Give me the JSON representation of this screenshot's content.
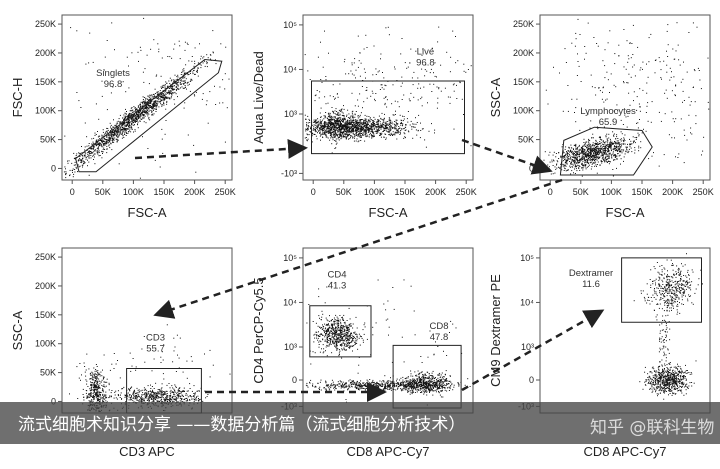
{
  "panels": [
    {
      "x_label": "FSC-A",
      "y_label": "FSC-H",
      "yticks": [
        "0",
        "50K",
        "100K",
        "150K",
        "200K",
        "250K"
      ],
      "xticks": [
        "0",
        "50K",
        "100K",
        "150K",
        "200K",
        "250K"
      ],
      "gates": [
        {
          "name": "Singlets",
          "percent": "96.8"
        }
      ]
    },
    {
      "x_label": "FSC-A",
      "y_label": "Aqua Live/Dead",
      "yticks": [
        "-10³",
        "0",
        "10³",
        "10⁴",
        "10⁵"
      ],
      "xticks": [
        "0",
        "50K",
        "100K",
        "150K",
        "200K",
        "250K"
      ],
      "gates": [
        {
          "name": "Live",
          "percent": "96.8"
        }
      ]
    },
    {
      "x_label": "FSC-A",
      "y_label": "SSC-A",
      "yticks": [
        "0",
        "50K",
        "100K",
        "150K",
        "200K",
        "250K"
      ],
      "xticks": [
        "0",
        "50K",
        "100K",
        "150K",
        "200K",
        "250K"
      ],
      "gates": [
        {
          "name": "Lymphocytes",
          "percent": "65.9"
        }
      ]
    },
    {
      "x_label": "CD3 APC",
      "y_label": "SSC-A",
      "yticks": [
        "0",
        "50K",
        "100K",
        "150K",
        "200K",
        "250K"
      ],
      "gates": [
        {
          "name": "CD3",
          "percent": "55.7"
        }
      ]
    },
    {
      "x_label": "CD8 APC-Cy7",
      "y_label": "CD4 PerCP-Cy5.5",
      "yticks": [
        "-10³",
        "0",
        "10³",
        "10⁴",
        "10⁵"
      ],
      "gates": [
        {
          "name": "CD4",
          "percent": "41.3"
        },
        {
          "name": "CD8",
          "percent": "47.8"
        }
      ]
    },
    {
      "x_label": "CD8 APC-Cy7",
      "y_label": "CM9 Dextramer PE",
      "yticks": [
        "-10³",
        "0",
        "10³",
        "10⁴",
        "10⁵"
      ],
      "gates": [
        {
          "name": "Dextramer",
          "percent": "11.6"
        }
      ]
    }
  ],
  "caption": "流式细胞术知识分享 ——数据分析篇（流式细胞分析技术）",
  "watermark": "知乎 @联科生物"
}
